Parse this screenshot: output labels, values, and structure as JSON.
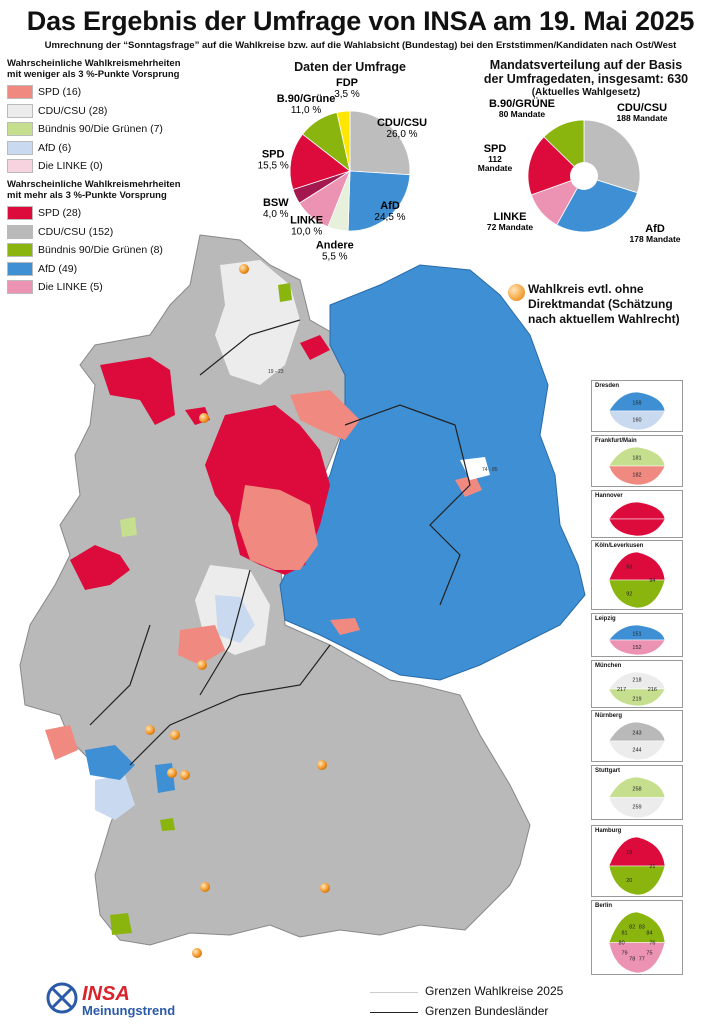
{
  "title": "Das Ergebnis der Umfrage von INSA am 19. Mai 2025",
  "subtitle": "Umrechnung der “Sonntagsfrage” auf die Wahlkreise bzw. auf die Wahlabsicht (Bundestag) bei den Erststimmen/Kandidaten nach Ost/West",
  "legend_weak": {
    "heading_line1": "Wahrscheinliche Wahlkreismehrheiten",
    "heading_line2": "mit weniger als 3 %-Punkte Vorsprung",
    "items": [
      {
        "label": "SPD (16)",
        "color": "#f08a80"
      },
      {
        "label": "CDU/CSU (28)",
        "color": "#ececec"
      },
      {
        "label": "Bündnis 90/Die Grünen (7)",
        "color": "#c6df8f"
      },
      {
        "label": "AfD (6)",
        "color": "#c9d9ef"
      },
      {
        "label": "Die LINKE (0)",
        "color": "#f7d3df"
      }
    ]
  },
  "legend_strong": {
    "heading_line1": "Wahrscheinliche Wahlkreismehrheiten",
    "heading_line2": "mit mehr als 3 %-Punkte Vorsprung",
    "items": [
      {
        "label": "SPD (28)",
        "color": "#dd0a3c"
      },
      {
        "label": "CDU/CSU (152)",
        "color": "#b9b9b9"
      },
      {
        "label": "Bündnis 90/Die Grünen (8)",
        "color": "#8ab50f"
      },
      {
        "label": "AfD (49)",
        "color": "#3e8fd4"
      },
      {
        "label": "Die LINKE (5)",
        "color": "#ec93b4"
      }
    ]
  },
  "chart_data": [
    {
      "type": "pie",
      "title": "Daten der Umfrage",
      "slices": [
        {
          "name": "CDU/CSU",
          "value": 26.0,
          "display": "26,0 %",
          "color": "#bdbdbd"
        },
        {
          "name": "AfD",
          "value": 24.5,
          "display": "24,5 %",
          "color": "#3e8fd4"
        },
        {
          "name": "Andere",
          "value": 5.5,
          "display": "5,5 %",
          "color": "#e7f0db"
        },
        {
          "name": "LINKE",
          "value": 10.0,
          "display": "10,0 %",
          "color": "#ec93b4"
        },
        {
          "name": "BSW",
          "value": 4.0,
          "display": "4,0 %",
          "color": "#a2184f"
        },
        {
          "name": "SPD",
          "value": 15.5,
          "display": "15,5 %",
          "color": "#dd0a3c"
        },
        {
          "name": "B.90/Grüne",
          "value": 11.0,
          "display": "11,0 %",
          "color": "#8ab50f"
        },
        {
          "name": "FDP",
          "value": 3.5,
          "display": "3,5 %",
          "color": "#ffe600"
        }
      ]
    },
    {
      "type": "pie",
      "title_line1": "Mandatsverteilung auf der Basis",
      "title_line2": "der Umfragedaten, insgesamt: 630",
      "title_line3": "(Aktuelles Wahlgesetz)",
      "total": 630,
      "slices": [
        {
          "name": "CDU/CSU",
          "value": 188,
          "display": "188 Mandate",
          "color": "#bdbdbd"
        },
        {
          "name": "AfD",
          "value": 178,
          "display": "178 Mandate",
          "color": "#3e8fd4"
        },
        {
          "name": "LINKE",
          "value": 72,
          "display": "72 Mandate",
          "color": "#ec93b4"
        },
        {
          "name": "SPD",
          "value": 112,
          "display_line1": "112",
          "display_line2": "Mandate",
          "color": "#dd0a3c"
        },
        {
          "name": "B.90/GRÜNE",
          "value": 80,
          "display": "80 Mandate",
          "color": "#8ab50f"
        }
      ]
    }
  ],
  "map_note": {
    "line1": "Wahlkreis evtl. ohne",
    "line2": "Direktmandat (Schätzung",
    "line3": "nach aktuellem Wahlrecht)"
  },
  "insets": [
    {
      "name": "Dresden",
      "labels": [
        "159",
        "160"
      ]
    },
    {
      "name": "Frankfurt/Main",
      "labels": [
        "181",
        "182"
      ]
    },
    {
      "name": "Hannover",
      "labels": []
    },
    {
      "name": "Köln/Leverkusen",
      "labels": [
        "94",
        "92",
        "93"
      ]
    },
    {
      "name": "Leipzig",
      "labels": [
        "151",
        "152"
      ]
    },
    {
      "name": "München",
      "labels": [
        "216",
        "219",
        "217",
        "218"
      ]
    },
    {
      "name": "Nürnberg",
      "labels": [
        "243",
        "244"
      ]
    },
    {
      "name": "Stuttgart",
      "labels": [
        "258",
        "259"
      ]
    },
    {
      "name": "Hamburg",
      "labels": [
        "21",
        "20",
        "19"
      ]
    },
    {
      "name": "Berlin",
      "labels": [
        "76",
        "75",
        "77",
        "78",
        "79",
        "80",
        "81",
        "82",
        "83",
        "84"
      ]
    }
  ],
  "map_labels": [
    "74 - 85",
    "19 - 23"
  ],
  "boundaries": {
    "wahlkreise": "Grenzen Wahlkreise 2025",
    "bundeslaender": "Grenzen Bundesländer"
  },
  "logo": {
    "brand": "INSA",
    "sub": "Meinungstrend"
  },
  "colors": {
    "spd_strong": "#dd0a3c",
    "cdu_strong": "#b9b9b9",
    "gruene_strong": "#8ab50f",
    "afd_strong": "#3e8fd4",
    "linke_strong": "#ec93b4",
    "spd_weak": "#f08a80",
    "cdu_weak": "#ececec",
    "gruene_weak": "#c6df8f",
    "afd_weak": "#c9d9ef",
    "marker_orange": "#f29a2e",
    "logo_blue": "#2a5aa8",
    "logo_red": "#d8232a"
  }
}
